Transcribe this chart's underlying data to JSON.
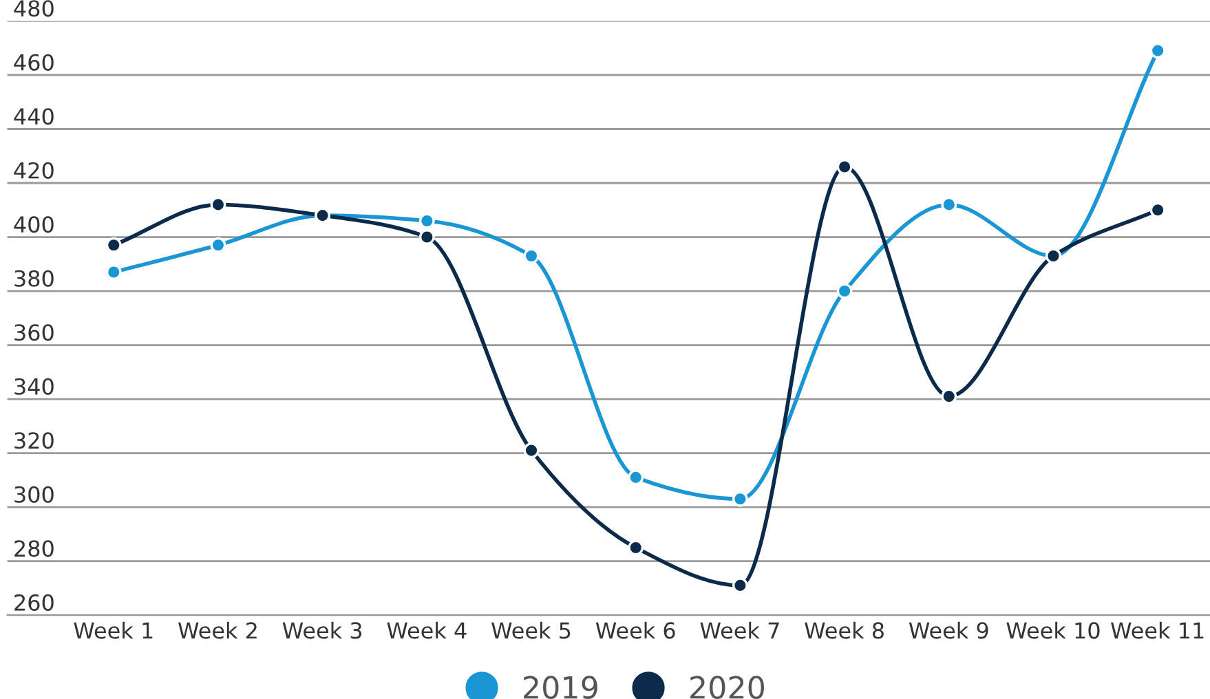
{
  "chart_data": {
    "type": "line",
    "categories": [
      "Week 1",
      "Week 2",
      "Week 3",
      "Week 4",
      "Week 5",
      "Week 6",
      "Week 7",
      "Week 8",
      "Week 9",
      "Week 10",
      "Week 11"
    ],
    "series": [
      {
        "name": "2019",
        "color": "#1a96d4",
        "values": [
          387,
          397,
          408,
          406,
          393,
          311,
          303,
          380,
          412,
          393,
          469
        ]
      },
      {
        "name": "2020",
        "color": "#0c2a4a",
        "values": [
          397,
          412,
          408,
          400,
          321,
          285,
          271,
          426,
          341,
          393,
          410
        ]
      }
    ],
    "ylim": [
      260,
      480
    ],
    "yticks": [
      260,
      280,
      300,
      320,
      340,
      360,
      380,
      400,
      420,
      440,
      460,
      480
    ],
    "grid": "y",
    "legend": "bottom",
    "marker": "circle",
    "line_style": "solid"
  }
}
